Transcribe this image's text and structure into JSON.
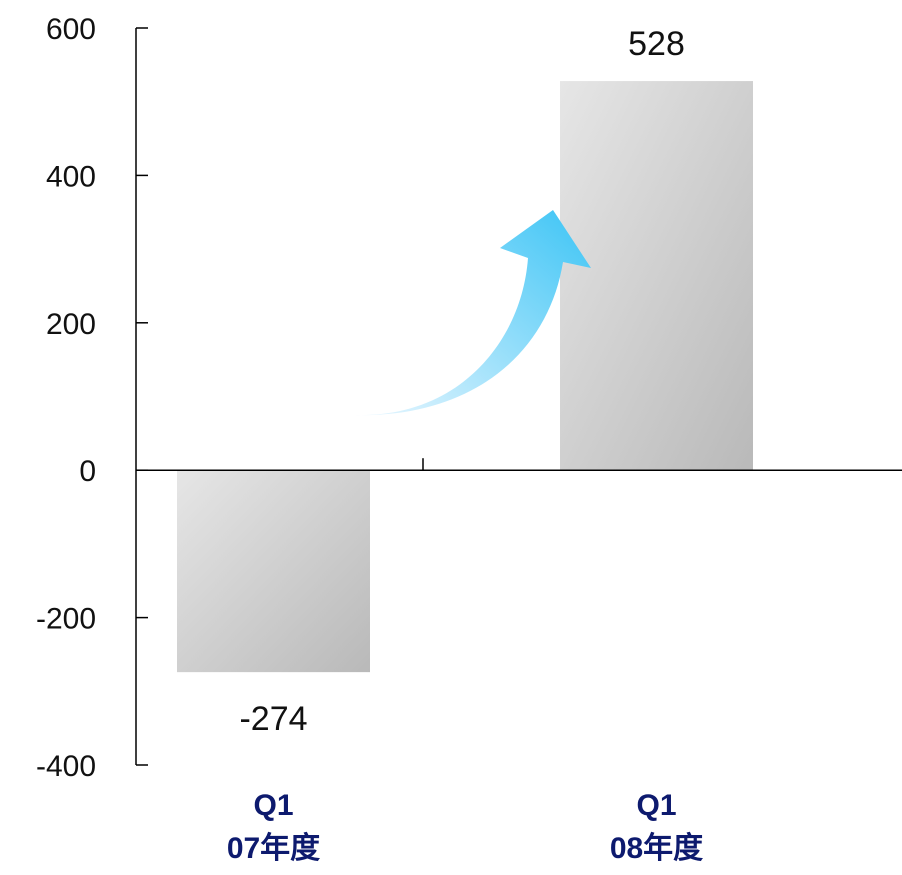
{
  "chart_data": {
    "type": "bar",
    "categories": [
      [
        "Q1",
        "07年度"
      ],
      [
        "Q1",
        "08年度"
      ]
    ],
    "values": [
      -274,
      528
    ],
    "data_labels": [
      "-274",
      "528"
    ],
    "ylim": [
      -400,
      600
    ],
    "yticks": [
      600,
      400,
      200,
      0,
      -200,
      -400
    ],
    "ytick_labels": [
      "600",
      "400",
      "200",
      "0",
      "-200",
      "-400"
    ],
    "grid": false,
    "legend": "none",
    "annotation": "upward-arrow",
    "colors": {
      "bar_light": "#e6e6e6",
      "bar_dark": "#b9b9b9",
      "arrow_light": "#eaf7ff",
      "arrow_dark": "#3cc4f5",
      "category_text": "#0d1a6e",
      "axis": "#000000"
    }
  }
}
